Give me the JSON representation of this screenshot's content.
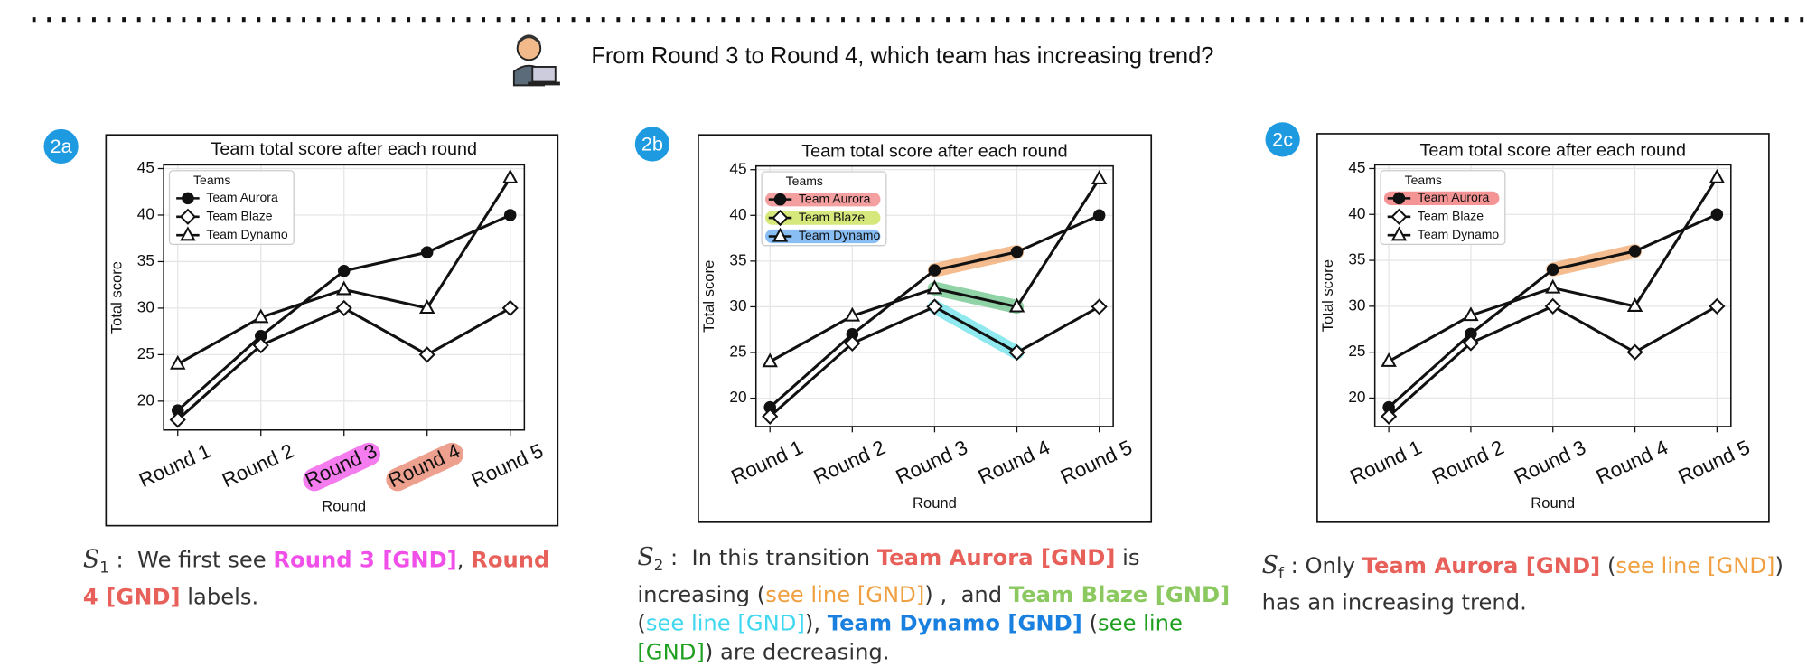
{
  "question": "From Round 3 to Round 4, which team has increasing trend?",
  "panels": [
    {
      "badge": "2a",
      "caption": {
        "label": "S",
        "sub": "1",
        "spans": [
          {
            "text": " :  We first see ",
            "color": "#333333",
            "bold": false
          },
          {
            "text": "Round 3 [GND]",
            "color": "#f050e8",
            "bold": true
          },
          {
            "text": ", ",
            "color": "#333333",
            "bold": false
          },
          {
            "text": "Round 4 [GND]",
            "color": "#e8605a",
            "bold": true
          },
          {
            "text": " labels.",
            "color": "#333333",
            "bold": false
          }
        ]
      }
    },
    {
      "badge": "2b",
      "caption": {
        "label": "S",
        "sub": "2",
        "spans": [
          {
            "text": " :  In this transition ",
            "color": "#333333",
            "bold": false
          },
          {
            "text": "Team Aurora [GND]",
            "color": "#e8605a",
            "bold": true
          },
          {
            "text": " is increasing (",
            "color": "#333333",
            "bold": false
          },
          {
            "text": "see line [GND]",
            "color": "#f0a040",
            "bold": false
          },
          {
            "text": ") ,  and ",
            "color": "#333333",
            "bold": false
          },
          {
            "text": "Team Blaze [GND]",
            "color": "#8cc860",
            "bold": true
          },
          {
            "text": " (",
            "color": "#333333",
            "bold": false
          },
          {
            "text": "see line [GND]",
            "color": "#40d8f0",
            "bold": false
          },
          {
            "text": "), ",
            "color": "#333333",
            "bold": false
          },
          {
            "text": "Team Dynamo [GND]",
            "color": "#1a80e0",
            "bold": true
          },
          {
            "text": " (",
            "color": "#333333",
            "bold": false
          },
          {
            "text": "see line [GND]",
            "color": "#20a020",
            "bold": false
          },
          {
            "text": ") are decreasing.",
            "color": "#333333",
            "bold": false
          }
        ]
      }
    },
    {
      "badge": "2c",
      "caption": {
        "label": "S",
        "sub": "f",
        "spans": [
          {
            "text": " : Only ",
            "color": "#333333",
            "bold": false
          },
          {
            "text": "Team Aurora [GND]",
            "color": "#e8605a",
            "bold": true
          },
          {
            "text": " (",
            "color": "#333333",
            "bold": false
          },
          {
            "text": "see line [GND]",
            "color": "#f0a040",
            "bold": false
          },
          {
            "text": ") has an increasing trend.",
            "color": "#333333",
            "bold": false
          }
        ]
      }
    }
  ],
  "chart_data": [
    {
      "type": "line",
      "title": "Team total score after each round",
      "x_label": "Round",
      "y_label": "Total score",
      "categories": [
        "Round 1",
        "Round 2",
        "Round 3",
        "Round 4",
        "Round 5"
      ],
      "legend_title": "Teams",
      "legend": "upper left",
      "grid": true,
      "series": [
        {
          "name": "Team Aurora",
          "color": "#111111",
          "marker": "circle",
          "values": [
            19,
            27,
            34,
            36,
            40
          ]
        },
        {
          "name": "Team Blaze",
          "color": "#111111",
          "marker": "diamond",
          "values": [
            18,
            26,
            30,
            25,
            30
          ]
        },
        {
          "name": "Team Dynamo",
          "color": "#111111",
          "marker": "triangle",
          "values": [
            24,
            29,
            32,
            30,
            44
          ]
        }
      ],
      "ylim": [
        16.9,
        45.4
      ],
      "yticks": [
        20,
        25,
        30,
        35,
        40,
        45
      ],
      "tick_highlights": [
        {
          "index": 2,
          "color": "#f050e8"
        },
        {
          "index": 3,
          "color": "#e8806a"
        }
      ]
    },
    {
      "type": "line",
      "title": "Team total score after each round",
      "x_label": "Round",
      "y_label": "Total score",
      "categories": [
        "Round 1",
        "Round 2",
        "Round 3",
        "Round 4",
        "Round 5"
      ],
      "legend_title": "Teams",
      "legend": "upper left",
      "grid": true,
      "series": [
        {
          "name": "Team Aurora",
          "color": "#111111",
          "marker": "circle",
          "values": [
            19,
            27,
            34,
            36,
            40
          ]
        },
        {
          "name": "Team Blaze",
          "color": "#111111",
          "marker": "diamond",
          "values": [
            18,
            26,
            30,
            25,
            30
          ]
        },
        {
          "name": "Team Dynamo",
          "color": "#111111",
          "marker": "triangle",
          "values": [
            24,
            29,
            32,
            30,
            44
          ]
        }
      ],
      "ylim": [
        16.9,
        45.4
      ],
      "yticks": [
        20,
        25,
        30,
        35,
        40,
        45
      ],
      "legend_highlights": [
        {
          "index": 0,
          "color": "#f08080"
        },
        {
          "index": 1,
          "color": "#c8e050"
        },
        {
          "index": 2,
          "color": "#60a8f0"
        }
      ],
      "segment_highlights": [
        {
          "series": 0,
          "from": 2,
          "to": 3,
          "color": "#f0a060"
        },
        {
          "series": 2,
          "from": 2,
          "to": 3,
          "color": "#60c080"
        },
        {
          "series": 1,
          "from": 2,
          "to": 3,
          "color": "#60e0e8"
        }
      ]
    },
    {
      "type": "line",
      "title": "Team total score after each round",
      "x_label": "Round",
      "y_label": "Total score",
      "categories": [
        "Round 1",
        "Round 2",
        "Round 3",
        "Round 4",
        "Round 5"
      ],
      "legend_title": "Teams",
      "legend": "upper left",
      "grid": true,
      "series": [
        {
          "name": "Team Aurora",
          "color": "#111111",
          "marker": "circle",
          "values": [
            19,
            27,
            34,
            36,
            40
          ]
        },
        {
          "name": "Team Blaze",
          "color": "#111111",
          "marker": "diamond",
          "values": [
            18,
            26,
            30,
            25,
            30
          ]
        },
        {
          "name": "Team Dynamo",
          "color": "#111111",
          "marker": "triangle",
          "values": [
            24,
            29,
            32,
            30,
            44
          ]
        }
      ],
      "ylim": [
        16.9,
        45.4
      ],
      "yticks": [
        20,
        25,
        30,
        35,
        40,
        45
      ],
      "legend_highlights": [
        {
          "index": 0,
          "color": "#f07070"
        }
      ],
      "segment_highlights": [
        {
          "series": 0,
          "from": 2,
          "to": 3,
          "color": "#f0a060"
        }
      ]
    }
  ]
}
